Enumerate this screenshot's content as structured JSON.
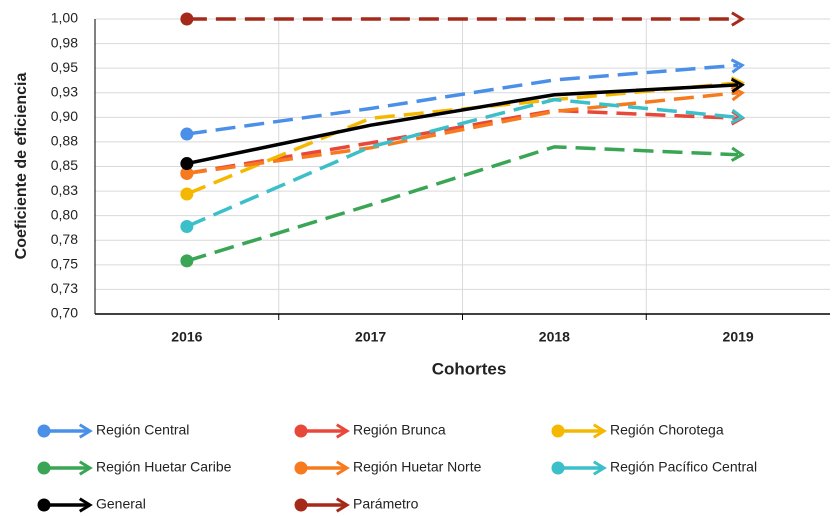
{
  "chart_data": {
    "type": "line",
    "xlabel": "Cohortes",
    "ylabel": "Coeficiente de eficiencia",
    "categories": [
      "2016",
      "2017",
      "2018",
      "2019"
    ],
    "ylim": [
      0.7,
      1.0
    ],
    "yticks": [
      {
        "value": 0.7,
        "label": "0,70"
      },
      {
        "value": 0.725,
        "label": "0,73"
      },
      {
        "value": 0.75,
        "label": "0,75"
      },
      {
        "value": 0.775,
        "label": "0,78"
      },
      {
        "value": 0.8,
        "label": "0,80"
      },
      {
        "value": 0.825,
        "label": "0,83"
      },
      {
        "value": 0.85,
        "label": "0,85"
      },
      {
        "value": 0.875,
        "label": "0,88"
      },
      {
        "value": 0.9,
        "label": "0,90"
      },
      {
        "value": 0.925,
        "label": "0,93"
      },
      {
        "value": 0.95,
        "label": "0,95"
      },
      {
        "value": 0.975,
        "label": "0,98"
      },
      {
        "value": 1.0,
        "label": "1,00"
      }
    ],
    "grid": true,
    "series": [
      {
        "name": "Región Central",
        "color": "#4a8fe8",
        "dashed": true,
        "values": [
          0.883,
          0.909,
          0.938,
          0.953
        ]
      },
      {
        "name": "Región Brunca",
        "color": "#e8483a",
        "dashed": true,
        "values": [
          0.843,
          0.874,
          0.907,
          0.899
        ]
      },
      {
        "name": "Región Chorotega",
        "color": "#f5b800",
        "dashed": true,
        "values": [
          0.822,
          0.899,
          0.918,
          0.935
        ]
      },
      {
        "name": "Región Huetar Caribe",
        "color": "#3aa655",
        "dashed": true,
        "values": [
          0.754,
          0.811,
          0.87,
          0.862
        ]
      },
      {
        "name": "Región Huetar Norte",
        "color": "#f77b1e",
        "dashed": true,
        "values": [
          0.843,
          0.869,
          0.906,
          0.925
        ]
      },
      {
        "name": "Región Pacífico Central",
        "color": "#3bbfc9",
        "dashed": true,
        "values": [
          0.789,
          0.87,
          0.918,
          0.9
        ]
      },
      {
        "name": "General",
        "color": "#000000",
        "dashed": false,
        "values": [
          0.853,
          0.892,
          0.923,
          0.933
        ]
      },
      {
        "name": "Parámetro",
        "color": "#a52a1a",
        "dashed": true,
        "values": [
          1.0,
          1.0,
          1.0,
          1.0
        ]
      }
    ]
  }
}
